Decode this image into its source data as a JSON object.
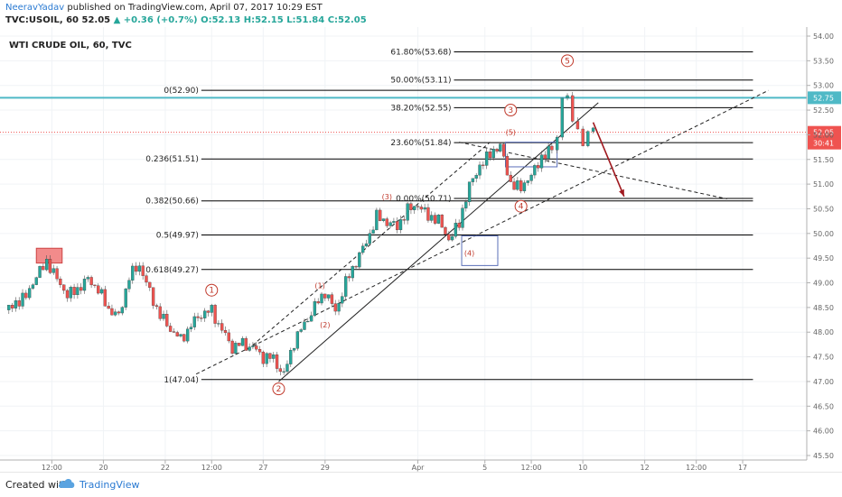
{
  "header": {
    "author": "NeeravYadav",
    "published": "published on TradingView.com, April 07, 2017 10:29 EST",
    "symbol": "TVC:USOIL, 60",
    "last": "52.05",
    "change": "+0.36 (+0.7%)",
    "open": "O:52.13",
    "high": "H:52.15",
    "low": "L:51.84",
    "close": "C:52.05"
  },
  "footer": {
    "created": "Created with",
    "brand": "TradingView"
  },
  "colors": {
    "up": "#26a69a",
    "down": "#ef5350",
    "hline": "#4fb9c6",
    "fib": "#000000",
    "arrow": "#a0191f",
    "wave": "#c0392b"
  },
  "chart_data": {
    "type": "candlestick",
    "title": "WTI CRUDE OIL, 60, TVC",
    "y_range": [
      45.5,
      54.0
    ],
    "x_range": [
      0,
      150
    ],
    "y_ticks": [
      "54.00",
      "53.50",
      "53.00",
      "52.50",
      "52.00",
      "51.50",
      "51.00",
      "50.50",
      "50.00",
      "49.50",
      "49.00",
      "48.50",
      "48.00",
      "47.50",
      "47.00",
      "46.50",
      "46.00",
      "45.50"
    ],
    "x_ticks": [
      {
        "x": 9,
        "label": "12:00"
      },
      {
        "x": 19,
        "label": "20"
      },
      {
        "x": 31,
        "label": "22"
      },
      {
        "x": 40,
        "label": "12:00"
      },
      {
        "x": 50,
        "label": "27"
      },
      {
        "x": 62,
        "label": "29"
      },
      {
        "x": 80,
        "label": "Apr"
      },
      {
        "x": 93,
        "label": "5"
      },
      {
        "x": 102,
        "label": "12:00"
      },
      {
        "x": 112,
        "label": "10"
      },
      {
        "x": 124,
        "label": "12"
      },
      {
        "x": 134,
        "label": "12:00"
      },
      {
        "x": 143,
        "label": "17"
      }
    ],
    "price_path": [
      [
        0,
        48.45
      ],
      [
        2,
        48.6
      ],
      [
        4,
        48.7
      ],
      [
        6,
        49.15
      ],
      [
        8,
        49.45
      ],
      [
        10,
        49.05
      ],
      [
        12,
        48.75
      ],
      [
        14,
        48.9
      ],
      [
        16,
        49.05
      ],
      [
        18,
        48.85
      ],
      [
        20,
        48.5
      ],
      [
        22,
        48.3
      ],
      [
        24,
        49.1
      ],
      [
        26,
        49.4
      ],
      [
        28,
        48.8
      ],
      [
        30,
        48.3
      ],
      [
        32,
        48.1
      ],
      [
        34,
        47.85
      ],
      [
        36,
        48.1
      ],
      [
        38,
        48.4
      ],
      [
        40,
        48.45
      ],
      [
        42,
        48.0
      ],
      [
        44,
        47.7
      ],
      [
        46,
        47.8
      ],
      [
        48,
        47.65
      ],
      [
        50,
        47.5
      ],
      [
        52,
        47.5
      ],
      [
        54,
        47.1
      ],
      [
        56,
        47.8
      ],
      [
        58,
        48.2
      ],
      [
        60,
        48.5
      ],
      [
        62,
        48.8
      ],
      [
        64,
        48.45
      ],
      [
        66,
        49.0
      ],
      [
        68,
        49.4
      ],
      [
        70,
        49.85
      ],
      [
        72,
        50.35
      ],
      [
        74,
        50.2
      ],
      [
        76,
        50.15
      ],
      [
        78,
        50.5
      ],
      [
        80,
        50.55
      ],
      [
        82,
        50.35
      ],
      [
        84,
        50.3
      ],
      [
        86,
        49.85
      ],
      [
        88,
        50.2
      ],
      [
        90,
        51.0
      ],
      [
        92,
        51.35
      ],
      [
        94,
        51.6
      ],
      [
        96,
        51.8
      ],
      [
        98,
        51.0
      ],
      [
        100,
        50.9
      ],
      [
        102,
        51.2
      ],
      [
        104,
        51.55
      ],
      [
        106,
        51.7
      ],
      [
        107,
        51.95
      ],
      [
        108,
        52.65
      ],
      [
        109,
        52.7
      ],
      [
        110,
        52.35
      ],
      [
        111,
        52.2
      ],
      [
        112,
        51.8
      ],
      [
        113,
        52.1
      ],
      [
        114,
        52.05
      ]
    ],
    "fib_left": [
      {
        "label": "0(52.90)",
        "value": 52.9
      },
      {
        "label": "0.236(51.51)",
        "value": 51.51
      },
      {
        "label": "0.382(50.66)",
        "value": 50.66
      },
      {
        "label": "0.5(49.97)",
        "value": 49.97
      },
      {
        "label": "0.618(49.27)",
        "value": 49.27
      },
      {
        "label": "1(47.04)",
        "value": 47.04
      }
    ],
    "fib_right": [
      {
        "label": "61.80%(53.68)",
        "value": 53.68
      },
      {
        "label": "50.00%(53.11)",
        "value": 53.11
      },
      {
        "label": "38.20%(52.55)",
        "value": 52.55
      },
      {
        "label": "23.60%(51.84)",
        "value": 51.84
      },
      {
        "label": "0.00%(50.71)",
        "value": 50.71
      }
    ],
    "horizontal_line": {
      "value": 52.75,
      "label": "52.75"
    },
    "last_price": {
      "value": 52.05,
      "label": "52.05",
      "countdown": "30:41"
    },
    "wave_labels": [
      {
        "text": "1",
        "x": 40,
        "y": 48.85,
        "circled": true
      },
      {
        "text": "2",
        "x": 53,
        "y": 46.85,
        "circled": true
      },
      {
        "text": "3",
        "x": 98,
        "y": 52.5,
        "circled": true
      },
      {
        "text": "4",
        "x": 100,
        "y": 50.55,
        "circled": true
      },
      {
        "text": "5",
        "x": 109,
        "y": 53.5,
        "circled": true
      },
      {
        "text": "(1)",
        "x": 61,
        "y": 48.95,
        "circled": false
      },
      {
        "text": "(2)",
        "x": 62,
        "y": 48.15,
        "circled": false
      },
      {
        "text": "(3)",
        "x": 74,
        "y": 50.75,
        "circled": false
      },
      {
        "text": "(4)",
        "x": 90,
        "y": 49.6,
        "circled": false
      },
      {
        "text": "(5)",
        "x": 98,
        "y": 52.05,
        "circled": false
      }
    ]
  }
}
